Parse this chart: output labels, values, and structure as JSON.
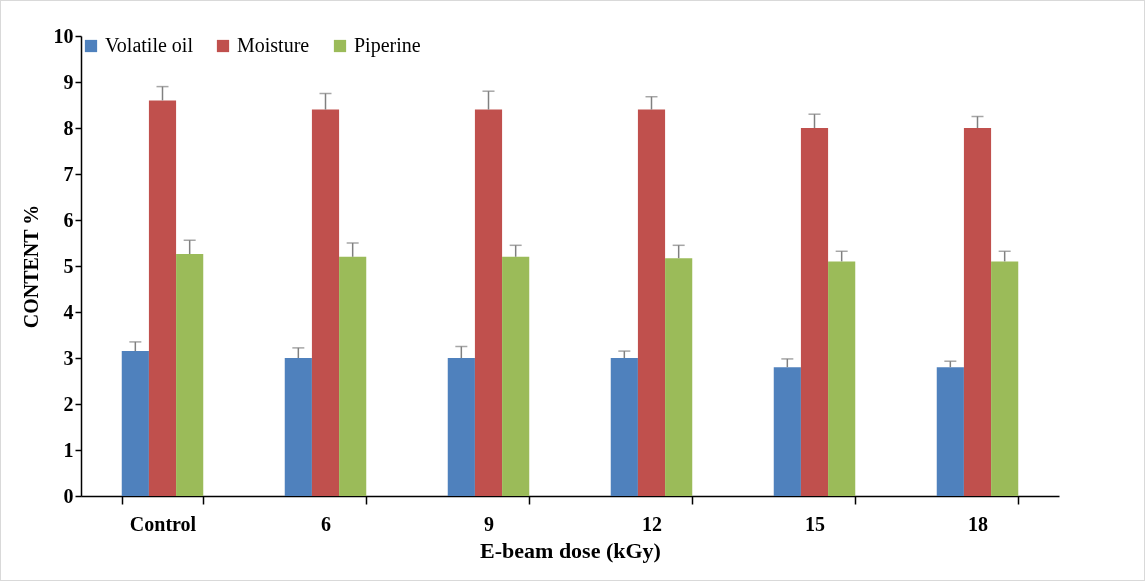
{
  "chart_data": {
    "type": "bar",
    "xlabel": "E-beam dose (kGy)",
    "ylabel": "CONTENT %",
    "categories": [
      "Control",
      "6",
      "9",
      "12",
      "15",
      "18"
    ],
    "series": [
      {
        "name": "Volatile oil",
        "color": "#4f81bd",
        "values": [
          3.15,
          3.0,
          3.0,
          3.0,
          2.8,
          2.8
        ],
        "errors": [
          0.2,
          0.22,
          0.25,
          0.15,
          0.18,
          0.13
        ]
      },
      {
        "name": "Moisture",
        "color": "#c0504d",
        "values": [
          8.6,
          8.4,
          8.4,
          8.4,
          8.0,
          8.0
        ],
        "errors": [
          0.3,
          0.35,
          0.4,
          0.28,
          0.3,
          0.25
        ]
      },
      {
        "name": "Piperine",
        "color": "#9bbb59",
        "values": [
          5.26,
          5.2,
          5.2,
          5.17,
          5.1,
          5.1
        ],
        "errors": [
          0.3,
          0.3,
          0.25,
          0.28,
          0.22,
          0.22
        ]
      }
    ],
    "ylim": [
      0,
      10
    ],
    "yticks": [
      0,
      1,
      2,
      3,
      4,
      5,
      6,
      7,
      8,
      9,
      10
    ],
    "grid": false,
    "legend": "top"
  }
}
